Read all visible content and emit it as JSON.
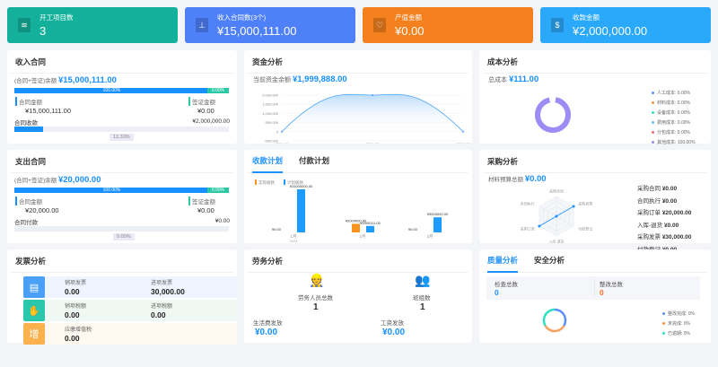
{
  "cards": [
    {
      "label": "开工项目数",
      "value": "3",
      "color": "#13b19b",
      "icon": "layers-icon"
    },
    {
      "label": "收入合同数(3个)",
      "value": "¥15,000,111.00",
      "color": "#4e80f9",
      "icon": "stamp-icon"
    },
    {
      "label": "产值金额",
      "value": "¥0.00",
      "color": "#f5811e",
      "icon": "heart-shield-icon"
    },
    {
      "label": "收款金额",
      "value": "¥2,000,000.00",
      "color": "#2aa9fb",
      "icon": "money-bag-icon"
    }
  ],
  "income": {
    "title": "收入合同",
    "balance_label": "(合同+签证)余额",
    "balance": "¥15,000,111.00",
    "contract_pct": "100.00%",
    "visa_pct": "0.00%",
    "contract_label": "合同金额",
    "contract_value": "¥15,000,111.00",
    "visa_label": "签证金额",
    "visa_value": "¥0.00",
    "collect_label": "合同收款",
    "collect_value": "¥2,000,000.00",
    "collect_pct": "13.33%",
    "collect_fraction": 0.1333
  },
  "expense": {
    "title": "支出合同",
    "balance_label": "(合同+签证)余额",
    "balance": "¥20,000.00",
    "contract_pct": "100.00%",
    "visa_pct": "0.00%",
    "contract_label": "合同金额",
    "contract_value": "¥20,000.00",
    "visa_label": "签证金额",
    "visa_value": "¥0.00",
    "pay_label": "合同付款",
    "pay_value": "¥0.00",
    "pay_pct": "0.00%"
  },
  "funds": {
    "title": "资金分析",
    "balance_label": "当前资金余额",
    "balance": "¥1,999,888.00"
  },
  "chart_data": [
    {
      "type": "area",
      "x": [
        "2024-01",
        "2024-02",
        "2024-03"
      ],
      "values": [
        0,
        2000000,
        0
      ],
      "yticks": [
        "2,000,000",
        "1,500,000",
        "1,000,000",
        "500,000",
        "0",
        "-500,000"
      ],
      "ylim": [
        -500000,
        2000000
      ]
    },
    {
      "type": "bar",
      "categories": [
        "1月",
        "2月",
        "3月"
      ],
      "year_label": "2024",
      "series": [
        {
          "name": "实际收款",
          "color": "#f7931e",
          "values": [
            0,
            2000000,
            0
          ],
          "labels": [
            "¥0.00",
            "¥2000000.00",
            "¥0.00"
          ]
        },
        {
          "name": "计划收款",
          "color": "#1e9bff",
          "values": [
            10000000,
            1500111,
            3500000
          ],
          "labels": [
            "¥10000000.00",
            "¥1500111.00",
            "¥3500000.00"
          ]
        }
      ]
    }
  ],
  "cost": {
    "title": "成本分析",
    "total_label": "总成本",
    "total": "¥111.00",
    "legend": [
      {
        "label": "人工成本: 0.00%",
        "color": "#5b8ff9"
      },
      {
        "label": "材料成本: 0.00%",
        "color": "#f6903d"
      },
      {
        "label": "设备成本: 0.00%",
        "color": "#2fe0c0"
      },
      {
        "label": "费用成本: 0.00%",
        "color": "#61c4f8"
      },
      {
        "label": "分包成本: 0.00%",
        "color": "#f36c7a"
      },
      {
        "label": "其他成本: 100.00%",
        "color": "#9c8cf3"
      }
    ]
  },
  "plan_tabs": [
    "收款计划",
    "付款计划"
  ],
  "purchase": {
    "title": "采购分析",
    "budget_label": "材料预算总额",
    "budget": "¥0.00",
    "radar_labels": [
      "采购合同",
      "采购发票",
      "付款登记",
      "入库-退货",
      "采购订单",
      "合同执行"
    ],
    "items": [
      {
        "label": "采购合同",
        "value": "¥0.00"
      },
      {
        "label": "合同执行",
        "value": "¥0.00"
      },
      {
        "label": "采购订单",
        "value": "¥20,000.00"
      },
      {
        "label": "入库-退货",
        "value": "¥0.00"
      },
      {
        "label": "采购发票",
        "value": "¥30,000.00"
      },
      {
        "label": "付款登记",
        "value": "¥0.00"
      }
    ]
  },
  "invoice": {
    "title": "发票分析",
    "rows": [
      {
        "icon": "invoice-icon",
        "color": "#4aa0f7",
        "bg": "#eff5fe",
        "a_label": "销项发票",
        "a_value": "0.00",
        "b_label": "进项发票",
        "b_value": "30,000.00"
      },
      {
        "icon": "tax-hand-icon",
        "color": "#2bc7ac",
        "bg": "#eff8f2",
        "a_label": "销项税额",
        "a_value": "0.00",
        "b_label": "进项税额",
        "b_value": "0.00"
      },
      {
        "icon": "vat-icon",
        "color": "#fbb24e",
        "bg": "#fff8f0",
        "a_label": "应缴增值税",
        "a_value": "0.00"
      }
    ]
  },
  "labor": {
    "title": "劳务分析",
    "workers_label": "劳务人员总数",
    "workers": "1",
    "teams_label": "班组数",
    "teams": "1",
    "living_label": "生活费发放",
    "living": "¥0.00",
    "wage_label": "工资发放",
    "wage": "¥0.00"
  },
  "quality": {
    "tabs": [
      "质量分析",
      "安全分析"
    ],
    "check_label": "检查总数",
    "check": "0",
    "rectify_label": "整改总数",
    "rectify": "0",
    "legend": [
      {
        "label": "整改完成: 0%",
        "color": "#5b8ff9"
      },
      {
        "label": "未完成: 0%",
        "color": "#f6903d"
      },
      {
        "label": "已逾期: 0%",
        "color": "#2fe0c0"
      }
    ]
  }
}
